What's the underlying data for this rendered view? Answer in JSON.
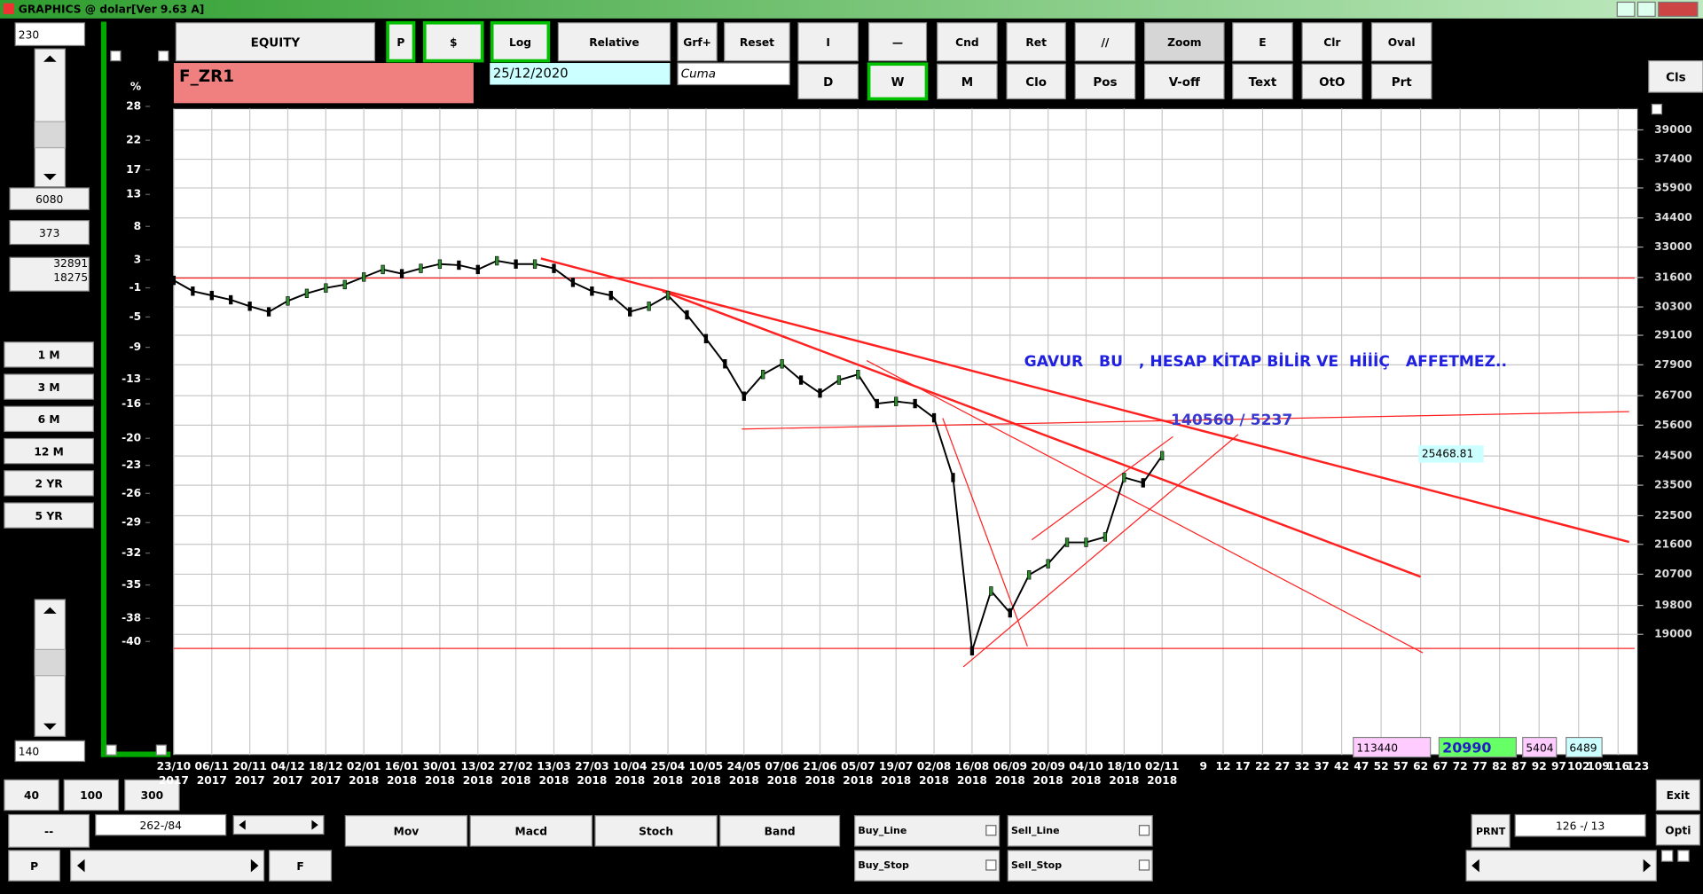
{
  "window_title": "GRAPHICS  @ dolar[Ver 9.63 A]",
  "toolbar": {
    "row1": [
      "EQUITY",
      "P",
      "$",
      "Log",
      "Relative",
      "Grf+",
      "Reset",
      "I",
      "—",
      "Cnd",
      "Ret",
      "//",
      "Zoom",
      "E",
      "Clr",
      "Oval"
    ],
    "row2": [
      "D",
      "W",
      "M",
      "Clo",
      "Pos",
      "V-off",
      "Text",
      "OtO",
      "Prt"
    ],
    "close": "Cls"
  },
  "symbol": "F_ZR1",
  "date": "25/12/2020",
  "day": "Cuma",
  "left_panel": {
    "top_input": "230",
    "values": [
      "6080",
      "373"
    ],
    "range": [
      "32891",
      "18275"
    ],
    "periods": [
      "1 M",
      "3 M",
      "6 M",
      "12 M",
      "2 YR",
      "5 YR"
    ],
    "bottom_input": "140"
  },
  "bottom_bar": {
    "zoom_buttons": [
      "40",
      "100",
      "300"
    ],
    "dash": "--",
    "counter": "262-/84",
    "indicators": [
      "Mov",
      "Macd",
      "Stoch",
      "Band"
    ],
    "orders": [
      "Buy_Line",
      "Sell_Line",
      "Buy_Stop",
      "Sell_Stop"
    ],
    "p": "P",
    "f": "F",
    "print": "PRNT",
    "readout": "126 -/ 13",
    "exit": "Exit",
    "options": "Opti"
  },
  "chart_data": {
    "type": "line",
    "categories": [
      "23/10",
      null,
      "06/11",
      null,
      "20/11",
      null,
      "04/12",
      null,
      "18/12",
      null,
      "02/01",
      null,
      "16/01",
      null,
      "30/01",
      null,
      "13/02",
      null,
      "27/02",
      null,
      "13/03",
      null,
      "27/03",
      null,
      "10/04",
      null,
      "25/04",
      null,
      "10/05",
      null,
      "24/05",
      null,
      "07/06",
      null,
      "21/06",
      null,
      "05/07",
      null,
      "19/07",
      null,
      "02/08",
      null,
      "16/08",
      null,
      "06/09",
      null,
      "20/09",
      null,
      "04/10",
      null,
      "18/10",
      null,
      "02/11"
    ],
    "category_years": [
      "2017",
      null,
      "2017",
      null,
      "2017",
      null,
      "2017",
      null,
      "2017",
      null,
      "2018",
      null,
      "2018",
      null,
      "2018",
      null,
      "2018",
      null,
      "2018",
      null,
      "2018",
      null,
      "2018",
      null,
      "2018",
      null,
      "2018",
      null,
      "2018",
      null,
      "2018",
      null,
      "2018",
      null,
      "2018",
      null,
      "2018",
      null,
      "2018",
      null,
      "2018",
      null,
      "2018",
      null,
      "2018",
      null,
      "2018",
      null,
      "2018",
      null,
      "2018",
      null,
      "2018"
    ],
    "values": [
      31470,
      30990,
      30800,
      30610,
      30330,
      30090,
      30560,
      30890,
      31130,
      31280,
      31620,
      31960,
      31770,
      32010,
      32210,
      32160,
      31960,
      32360,
      32210,
      32210,
      32010,
      31380,
      30990,
      30800,
      30090,
      30330,
      30800,
      29960,
      28960,
      27940,
      26680,
      27520,
      27940,
      27300,
      26800,
      27300,
      27520,
      26400,
      26480,
      26400,
      25870,
      23760,
      18560,
      20210,
      19590,
      20680,
      21010,
      21660,
      21660,
      21830,
      23760,
      23580,
      24510
    ],
    "color": "#000000",
    "future_ticks": [
      9,
      12,
      17,
      22,
      27,
      32,
      37,
      42,
      47,
      52,
      57,
      62,
      67,
      72,
      77,
      82,
      87,
      92,
      97,
      102,
      109,
      116,
      123
    ],
    "log_scale": true,
    "ylim": [
      16000,
      40200
    ],
    "yticks": [
      39000,
      37400,
      35900,
      34400,
      33000,
      31600,
      30300,
      29100,
      27900,
      26700,
      25600,
      24500,
      23500,
      22500,
      21600,
      20700,
      19800,
      19000
    ],
    "y2_label": "%",
    "y2lim": [
      -48.9,
      27.6
    ],
    "y2ticks": [
      28,
      22,
      17,
      13,
      8,
      3,
      -1,
      -5,
      -9,
      -13,
      -16,
      -20,
      -23,
      -26,
      -29,
      -32,
      -35,
      -38,
      -40
    ],
    "grid": true,
    "annotations": {
      "comment": "GAVUR   BU   , HESAP KİTAP BİLİR VE  HİİİÇ   AFFETMEZ..",
      "target": "140560 / 5237",
      "price_box": "25468.81"
    },
    "status_boxes": [
      "113440",
      "20990",
      "5404",
      "6489"
    ]
  }
}
